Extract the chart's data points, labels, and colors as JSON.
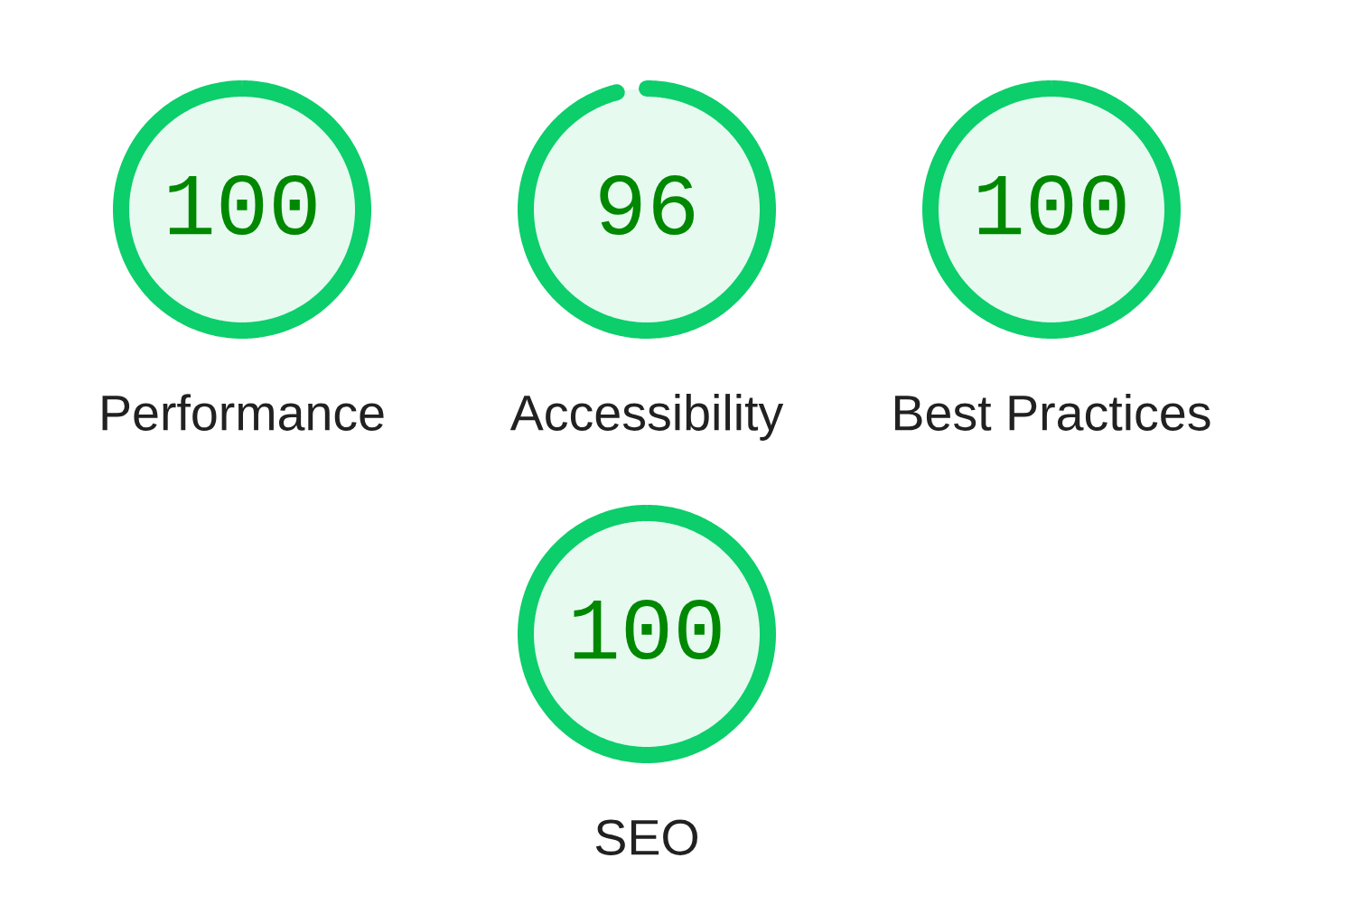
{
  "chart_data": {
    "type": "other",
    "categories": [
      "Performance",
      "Accessibility",
      "Best Practices",
      "SEO"
    ],
    "values": [
      100,
      96,
      100,
      100
    ],
    "color": "#0cce6b",
    "data_labels": true
  }
}
